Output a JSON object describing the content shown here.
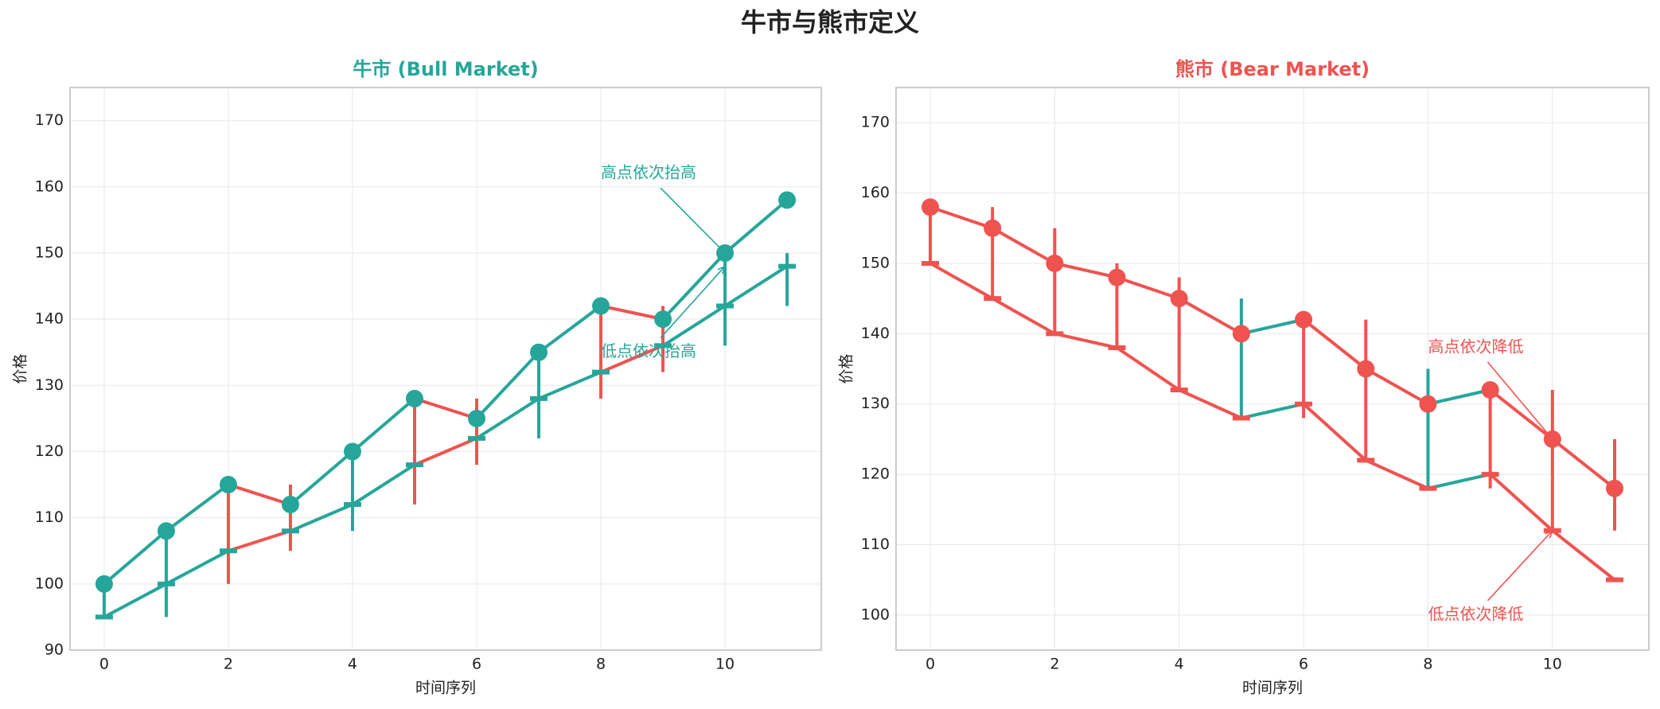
{
  "title": "牛市与熊市定义",
  "chart_data": [
    {
      "type": "line",
      "title": "牛市 (Bull Market)",
      "title_color": "#26a69a",
      "xlabel": "时间序列",
      "ylabel": "价格",
      "up_color": "#26a69a",
      "down_color": "#ef5350",
      "grid": true,
      "x": [
        0,
        1,
        2,
        3,
        4,
        5,
        6,
        7,
        8,
        9,
        10,
        11
      ],
      "xlim": [
        -0.55,
        11.55
      ],
      "xticks": [
        0,
        2,
        4,
        6,
        8,
        10
      ],
      "ylim": [
        90,
        175
      ],
      "yticks": [
        90,
        100,
        110,
        120,
        130,
        140,
        150,
        160,
        170
      ],
      "series": [
        {
          "marker": "circle",
          "color": "#26a69a",
          "values": [
            100,
            108,
            115,
            112,
            120,
            128,
            125,
            135,
            142,
            140,
            150,
            158
          ]
        },
        {
          "marker": "tick",
          "color": "#26a69a",
          "values": [
            95,
            100,
            105,
            108,
            112,
            118,
            122,
            128,
            132,
            136,
            142,
            148
          ]
        }
      ],
      "wicks": {
        "low": [
          95,
          95,
          100,
          105,
          108,
          112,
          118,
          122,
          128,
          132,
          136,
          142
        ],
        "high": [
          100,
          108,
          115,
          115,
          120,
          128,
          128,
          135,
          142,
          142,
          150,
          150
        ],
        "colors": [
          "#26a69a",
          "#26a69a",
          "#ef5350",
          "#ef5350",
          "#26a69a",
          "#ef5350",
          "#ef5350",
          "#26a69a",
          "#ef5350",
          "#ef5350",
          "#26a69a",
          "#26a69a"
        ]
      },
      "annotations": [
        {
          "text": "高点依次抬高",
          "xy": [
            10,
            150
          ],
          "xytext": [
            8,
            162
          ],
          "color": "#26a69a"
        },
        {
          "text": "低点依次抬高",
          "xy": [
            10,
            148
          ],
          "xytext": [
            8,
            135
          ],
          "color": "#26a69a"
        }
      ]
    },
    {
      "type": "line",
      "title": "熊市 (Bear Market)",
      "title_color": "#ef5350",
      "xlabel": "时间序列",
      "ylabel": "价格",
      "up_color": "#26a69a",
      "down_color": "#ef5350",
      "grid": true,
      "x": [
        0,
        1,
        2,
        3,
        4,
        5,
        6,
        7,
        8,
        9,
        10,
        11
      ],
      "xlim": [
        -0.55,
        11.55
      ],
      "xticks": [
        0,
        2,
        4,
        6,
        8,
        10
      ],
      "ylim": [
        95,
        175
      ],
      "yticks": [
        100,
        110,
        120,
        130,
        140,
        150,
        160,
        170
      ],
      "series": [
        {
          "marker": "circle",
          "color": "#ef5350",
          "values": [
            158,
            155,
            150,
            148,
            145,
            140,
            142,
            135,
            130,
            132,
            125,
            118
          ]
        },
        {
          "marker": "tick",
          "color": "#ef5350",
          "values": [
            150,
            145,
            140,
            138,
            132,
            128,
            130,
            122,
            118,
            120,
            112,
            105
          ]
        }
      ],
      "wicks": {
        "low": [
          150,
          145,
          140,
          138,
          132,
          128,
          128,
          122,
          118,
          118,
          112,
          112
        ],
        "high": [
          158,
          158,
          155,
          150,
          148,
          145,
          142,
          142,
          135,
          132,
          132,
          125
        ],
        "colors": [
          "#ef5350",
          "#ef5350",
          "#ef5350",
          "#ef5350",
          "#ef5350",
          "#26a69a",
          "#ef5350",
          "#ef5350",
          "#26a69a",
          "#ef5350",
          "#ef5350",
          "#ef5350"
        ]
      },
      "annotations": [
        {
          "text": "高点依次降低",
          "xy": [
            10,
            125
          ],
          "xytext": [
            8,
            138
          ],
          "color": "#ef5350"
        },
        {
          "text": "低点依次降低",
          "xy": [
            10,
            112
          ],
          "xytext": [
            8,
            100
          ],
          "color": "#ef5350"
        }
      ]
    }
  ]
}
